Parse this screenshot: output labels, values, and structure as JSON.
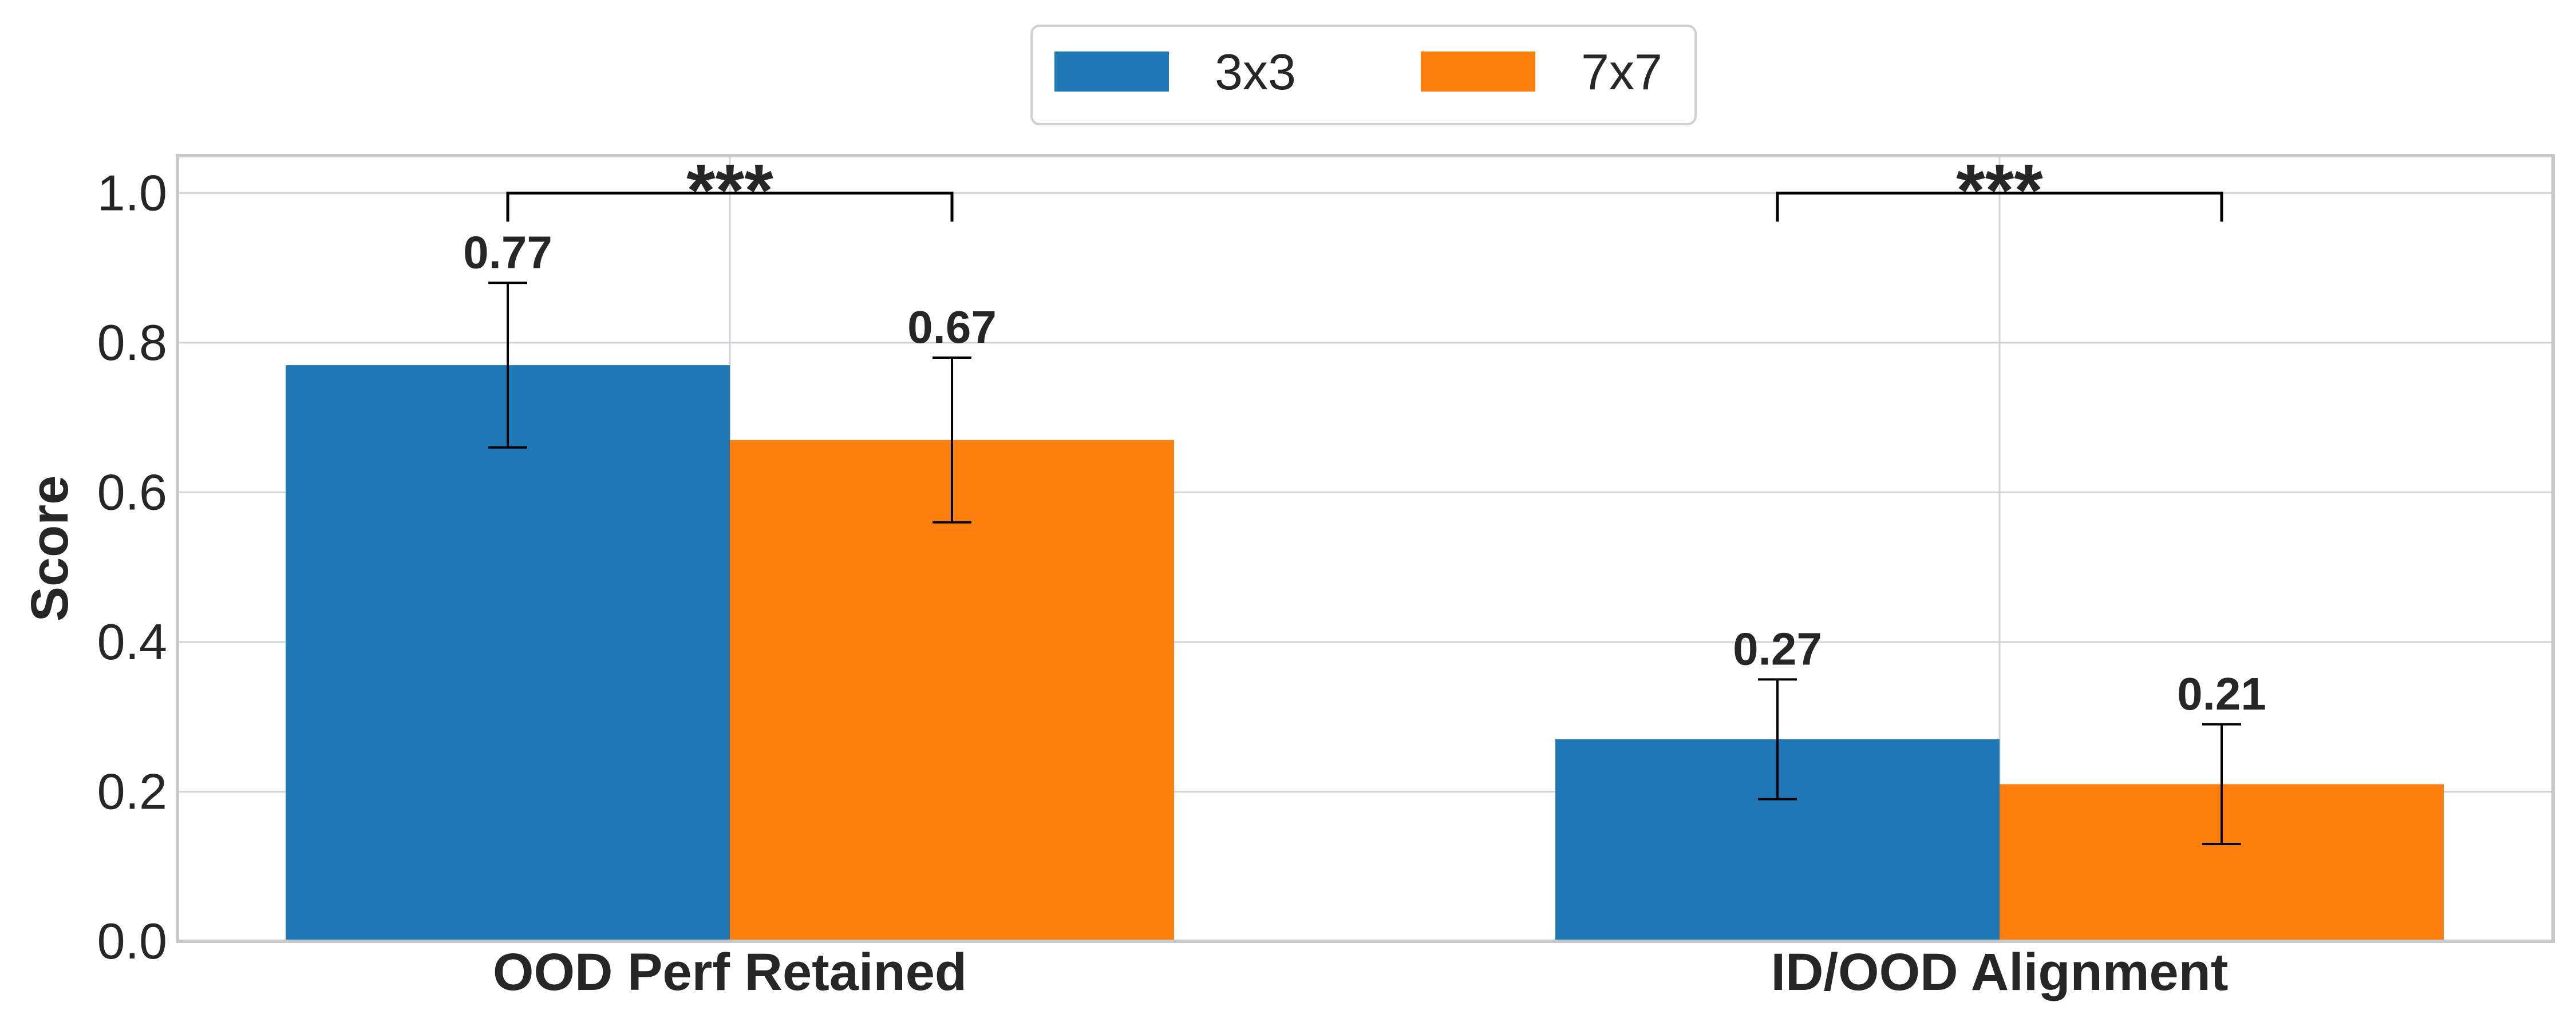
{
  "chart_data": {
    "type": "bar",
    "title": "",
    "xlabel": "",
    "ylabel": "Score",
    "ylim": [
      0.0,
      1.05
    ],
    "yticks": [
      0.0,
      0.2,
      0.4,
      0.6,
      0.8,
      1.0
    ],
    "ytick_labels": [
      "0.0",
      "0.2",
      "0.4",
      "0.6",
      "0.8",
      "1.0"
    ],
    "categories": [
      "OOD Perf Retained",
      "ID/OOD Alignment"
    ],
    "series": [
      {
        "name": "3x3",
        "color": "#1f77b4",
        "values": [
          0.77,
          0.27
        ],
        "errors": [
          0.11,
          0.08
        ],
        "labels": [
          "0.77",
          "0.27"
        ]
      },
      {
        "name": "7x7",
        "color": "#ff7f0e",
        "values": [
          0.67,
          0.21
        ],
        "errors": [
          0.11,
          0.08
        ],
        "labels": [
          "0.67",
          "0.21"
        ]
      }
    ],
    "significance": [
      {
        "category_index": 0,
        "label": "***",
        "y": 1.0
      },
      {
        "category_index": 1,
        "label": "***",
        "y": 1.0
      }
    ],
    "grid": true,
    "legend": {
      "position": "top-center",
      "entries": [
        "3x3",
        "7x7"
      ]
    }
  }
}
